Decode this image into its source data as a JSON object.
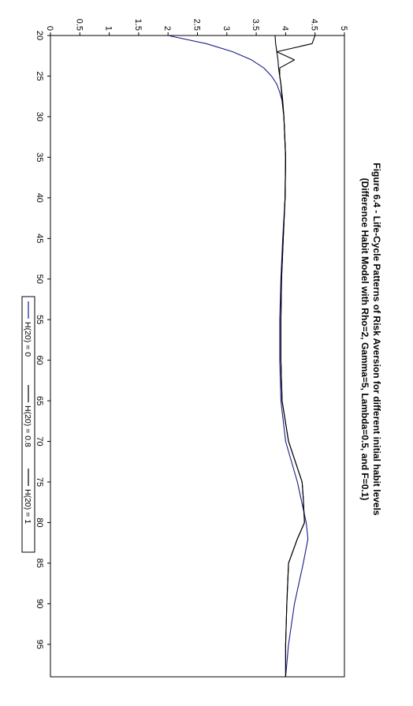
{
  "chart_data": {
    "type": "line",
    "title": "Figure 6.4 - Life-Cycle Patterns of Risk Aversion for different initial habit levels",
    "subtitle": "(Difference Habit Model with Rho=2, Gamma=5, Lambda=0.5, and F=0.1)",
    "xlabel": "",
    "ylabel": "",
    "xlim": [
      20,
      99
    ],
    "ylim": [
      0,
      5
    ],
    "x_ticks": [
      "20",
      "25",
      "30",
      "35",
      "40",
      "45",
      "50",
      "55",
      "60",
      "65",
      "70",
      "75",
      "80",
      "85",
      "90",
      "95"
    ],
    "y_ticks": [
      "0",
      "0.5",
      "1",
      "1.5",
      "2",
      "2.5",
      "3",
      "3.5",
      "4",
      "4.5",
      "5"
    ],
    "grid": false,
    "legend_position": "bottom",
    "orientation": "rotated-90",
    "series": [
      {
        "name": "H(20) = 0",
        "color": "#1a1a8c",
        "x": [
          20,
          21,
          22,
          23,
          24,
          25,
          26,
          27,
          28,
          30,
          35,
          40,
          45,
          50,
          55,
          60,
          65,
          70,
          75,
          80,
          82,
          85,
          90,
          95,
          99
        ],
        "y": [
          2.0,
          2.65,
          3.1,
          3.42,
          3.63,
          3.76,
          3.85,
          3.9,
          3.94,
          3.97,
          4.0,
          3.99,
          3.95,
          3.92,
          3.9,
          3.9,
          3.92,
          4.0,
          4.2,
          4.35,
          4.38,
          4.3,
          4.15,
          4.05,
          4.0
        ]
      },
      {
        "name": "H(20) = 0.8",
        "color": "#000000",
        "x": [
          20,
          21,
          22,
          23,
          24,
          25,
          26,
          28,
          30,
          35,
          40,
          45,
          50,
          55,
          60,
          65,
          70,
          75,
          77,
          80,
          82,
          85,
          90,
          95,
          99
        ],
        "y": [
          3.82,
          3.83,
          3.85,
          3.87,
          3.88,
          3.9,
          3.92,
          3.95,
          3.97,
          4.0,
          3.99,
          3.96,
          3.93,
          3.92,
          3.92,
          3.94,
          4.05,
          4.28,
          4.3,
          4.32,
          4.2,
          4.05,
          4.02,
          4.0,
          4.0
        ]
      },
      {
        "name": "H(20) = 1",
        "color": "#000000",
        "x": [
          20,
          21,
          22,
          23,
          24,
          25,
          26,
          28,
          30,
          35,
          40,
          45,
          50,
          55,
          60,
          65,
          70,
          75,
          77,
          80,
          82,
          85,
          90,
          95,
          99
        ],
        "y": [
          4.5,
          4.45,
          3.85,
          4.15,
          3.9,
          3.9,
          3.92,
          3.94,
          3.97,
          4.0,
          3.99,
          3.96,
          3.93,
          3.92,
          3.92,
          3.94,
          4.05,
          4.28,
          4.3,
          4.32,
          4.2,
          4.05,
          4.02,
          4.0,
          4.0
        ]
      }
    ]
  }
}
